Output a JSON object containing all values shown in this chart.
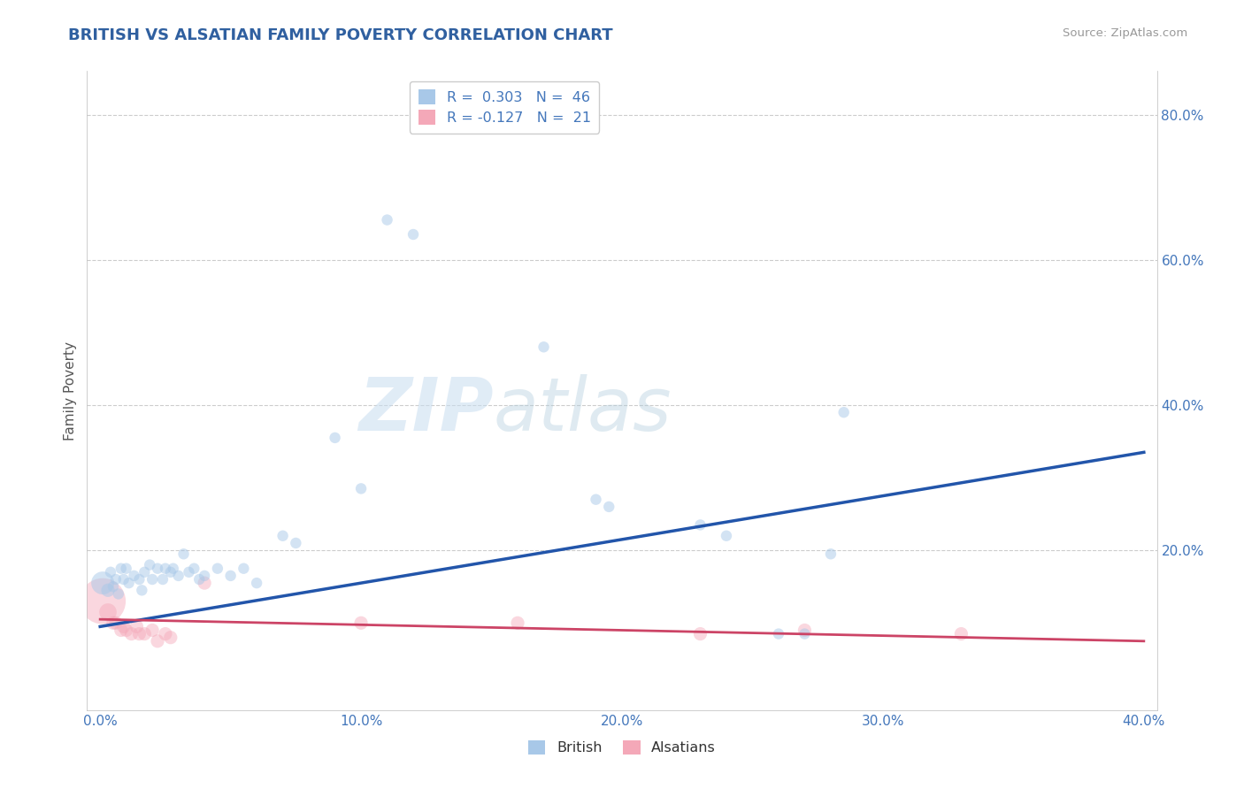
{
  "title": "BRITISH VS ALSATIAN FAMILY POVERTY CORRELATION CHART",
  "source_text": "Source: ZipAtlas.com",
  "ylabel": "Family Poverty",
  "watermark": "ZIPatlas",
  "xlim": [
    -0.005,
    0.405
  ],
  "ylim": [
    -0.02,
    0.86
  ],
  "xtick_vals": [
    0.0,
    0.1,
    0.2,
    0.3,
    0.4
  ],
  "xtick_labels": [
    "0.0%",
    "10.0%",
    "20.0%",
    "30.0%",
    "40.0%"
  ],
  "ytick_vals": [
    0.2,
    0.4,
    0.6,
    0.8
  ],
  "ytick_labels": [
    "20.0%",
    "40.0%",
    "60.0%",
    "80.0%"
  ],
  "british_color": "#a8c8e8",
  "alsatian_color": "#f4a8b8",
  "blue_line_color": "#2255aa",
  "pink_line_color": "#cc4466",
  "background_color": "#ffffff",
  "grid_color": "#cccccc",
  "title_color": "#3060a0",
  "ylabel_color": "#555555",
  "tick_color": "#4477bb",
  "source_color": "#999999",
  "r_british": 0.303,
  "n_british": 46,
  "r_alsatian": -0.127,
  "n_alsatian": 21,
  "blue_line": [
    0.0,
    0.095,
    0.4,
    0.335
  ],
  "pink_line": [
    0.0,
    0.105,
    0.4,
    0.075
  ],
  "british_points": [
    [
      0.001,
      0.155,
      350
    ],
    [
      0.003,
      0.145,
      120
    ],
    [
      0.004,
      0.17,
      80
    ],
    [
      0.005,
      0.15,
      80
    ],
    [
      0.006,
      0.16,
      80
    ],
    [
      0.007,
      0.14,
      80
    ],
    [
      0.008,
      0.175,
      80
    ],
    [
      0.009,
      0.16,
      80
    ],
    [
      0.01,
      0.175,
      80
    ],
    [
      0.011,
      0.155,
      80
    ],
    [
      0.013,
      0.165,
      80
    ],
    [
      0.015,
      0.16,
      80
    ],
    [
      0.016,
      0.145,
      80
    ],
    [
      0.017,
      0.17,
      80
    ],
    [
      0.019,
      0.18,
      80
    ],
    [
      0.02,
      0.16,
      80
    ],
    [
      0.022,
      0.175,
      80
    ],
    [
      0.024,
      0.16,
      80
    ],
    [
      0.025,
      0.175,
      80
    ],
    [
      0.027,
      0.17,
      80
    ],
    [
      0.028,
      0.175,
      80
    ],
    [
      0.03,
      0.165,
      80
    ],
    [
      0.032,
      0.195,
      80
    ],
    [
      0.034,
      0.17,
      80
    ],
    [
      0.036,
      0.175,
      80
    ],
    [
      0.038,
      0.16,
      80
    ],
    [
      0.04,
      0.165,
      80
    ],
    [
      0.045,
      0.175,
      80
    ],
    [
      0.05,
      0.165,
      80
    ],
    [
      0.055,
      0.175,
      80
    ],
    [
      0.06,
      0.155,
      80
    ],
    [
      0.07,
      0.22,
      80
    ],
    [
      0.075,
      0.21,
      80
    ],
    [
      0.09,
      0.355,
      80
    ],
    [
      0.1,
      0.285,
      80
    ],
    [
      0.11,
      0.655,
      80
    ],
    [
      0.12,
      0.635,
      80
    ],
    [
      0.17,
      0.48,
      80
    ],
    [
      0.19,
      0.27,
      80
    ],
    [
      0.195,
      0.26,
      80
    ],
    [
      0.23,
      0.235,
      80
    ],
    [
      0.24,
      0.22,
      80
    ],
    [
      0.26,
      0.085,
      80
    ],
    [
      0.27,
      0.085,
      80
    ],
    [
      0.28,
      0.195,
      80
    ],
    [
      0.285,
      0.39,
      80
    ]
  ],
  "alsatian_points": [
    [
      0.001,
      0.13,
      1400
    ],
    [
      0.003,
      0.115,
      200
    ],
    [
      0.005,
      0.1,
      120
    ],
    [
      0.006,
      0.1,
      120
    ],
    [
      0.008,
      0.09,
      120
    ],
    [
      0.009,
      0.095,
      120
    ],
    [
      0.01,
      0.09,
      120
    ],
    [
      0.012,
      0.085,
      120
    ],
    [
      0.014,
      0.095,
      120
    ],
    [
      0.015,
      0.085,
      120
    ],
    [
      0.017,
      0.085,
      120
    ],
    [
      0.02,
      0.09,
      120
    ],
    [
      0.022,
      0.075,
      120
    ],
    [
      0.025,
      0.085,
      120
    ],
    [
      0.027,
      0.08,
      120
    ],
    [
      0.04,
      0.155,
      120
    ],
    [
      0.1,
      0.1,
      120
    ],
    [
      0.16,
      0.1,
      120
    ],
    [
      0.23,
      0.085,
      120
    ],
    [
      0.27,
      0.09,
      120
    ],
    [
      0.33,
      0.085,
      120
    ]
  ]
}
